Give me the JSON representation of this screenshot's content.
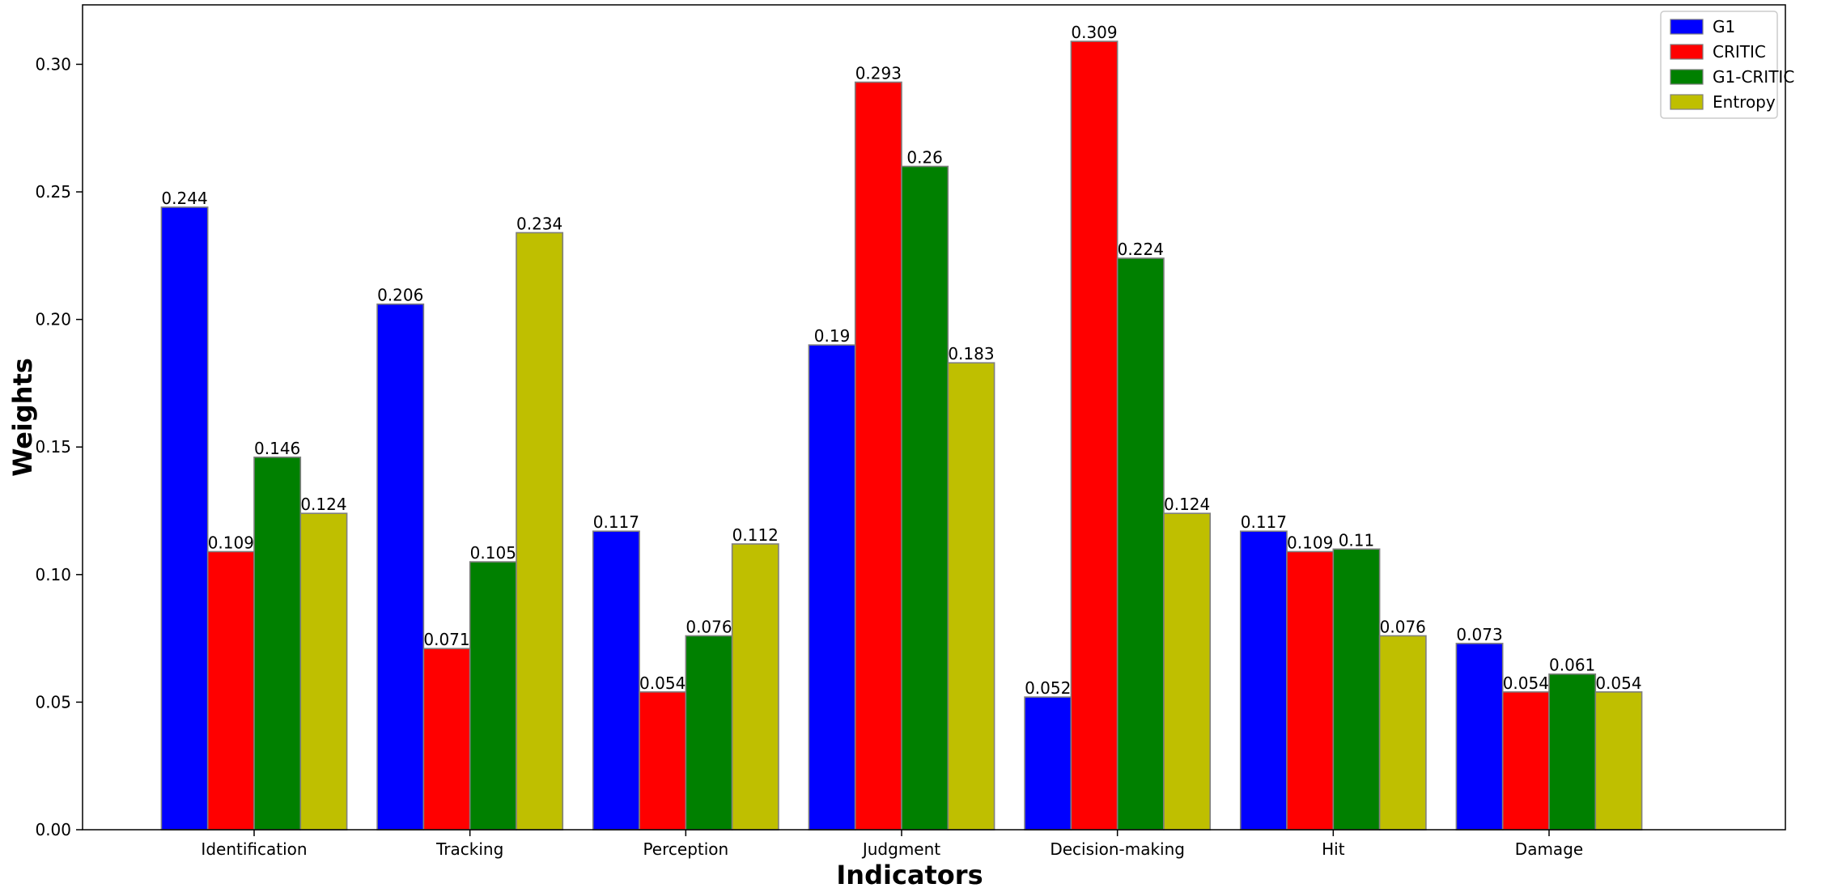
{
  "chart_data": {
    "type": "bar",
    "title": "",
    "xlabel": "Indicators",
    "ylabel": "Weights",
    "ylim": [
      0,
      0.3233
    ],
    "yticks": [
      0.0,
      0.05,
      0.1,
      0.15,
      0.2,
      0.25,
      0.3
    ],
    "ytick_labels": [
      "0.00",
      "0.05",
      "0.10",
      "0.15",
      "0.20",
      "0.25",
      "0.30"
    ],
    "grid": false,
    "legend_position": "top-right",
    "categories": [
      "Identification",
      "Tracking",
      "Perception",
      "Judgment",
      "Decision-making",
      "Hit",
      "Damage"
    ],
    "series": [
      {
        "name": "G1",
        "color": "#0000ff",
        "values": [
          0.244,
          0.206,
          0.117,
          0.19,
          0.052,
          0.117,
          0.073
        ],
        "labels": [
          "0.244",
          "0.206",
          "0.117",
          "0.19",
          "0.052",
          "0.117",
          "0.073"
        ]
      },
      {
        "name": "CRITIC",
        "color": "#ff0000",
        "values": [
          0.109,
          0.071,
          0.054,
          0.293,
          0.309,
          0.109,
          0.054
        ],
        "labels": [
          "0.109",
          "0.071",
          "0.054",
          "0.293",
          "0.309",
          "0.109",
          "0.054"
        ]
      },
      {
        "name": "G1-CRITIC",
        "color": "#008000",
        "values": [
          0.146,
          0.105,
          0.076,
          0.26,
          0.224,
          0.11,
          0.061
        ],
        "labels": [
          "0.146",
          "0.105",
          "0.076",
          "0.26",
          "0.224",
          "0.11",
          "0.061"
        ]
      },
      {
        "name": "Entropy",
        "color": "#bfbf00",
        "values": [
          0.124,
          0.234,
          0.112,
          0.183,
          0.124,
          0.076,
          0.054
        ],
        "labels": [
          "0.124",
          "0.234",
          "0.112",
          "0.183",
          "0.124",
          "0.076",
          "0.054"
        ]
      }
    ]
  }
}
